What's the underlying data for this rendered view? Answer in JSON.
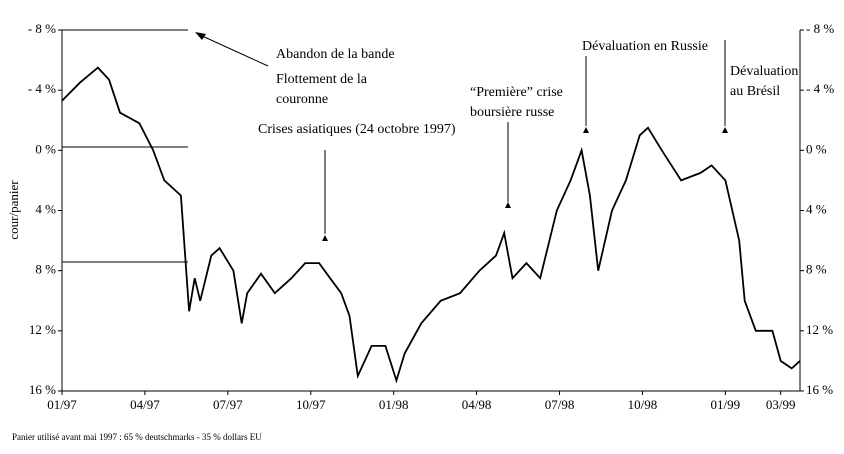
{
  "chart_data": {
    "type": "line",
    "y_label": "cour/panier",
    "footnote": "Panier utilisé avant mai 1997 : 65 % deutschmarks - 35 % dollars EU",
    "annotations": [
      "Abandon de la bande",
      "Flottement de la",
      "couronne",
      "Crises asiatiques (24 octobre 1997)",
      "“Première” crise",
      "boursière russe",
      "Dévaluation en Russie",
      "Dévaluation",
      "au Brésil"
    ],
    "color": "#000000",
    "y_inverted": true,
    "xlim": [
      0,
      26.7
    ],
    "xticks": [
      {
        "value": 0,
        "label": "01/97"
      },
      {
        "value": 3,
        "label": "04/97"
      },
      {
        "value": 6,
        "label": "07/97"
      },
      {
        "value": 9,
        "label": "10/97"
      },
      {
        "value": 12,
        "label": "01/98"
      },
      {
        "value": 15,
        "label": "04/98"
      },
      {
        "value": 18,
        "label": "07/98"
      },
      {
        "value": 21,
        "label": "10/98"
      },
      {
        "value": 24,
        "label": "01/99"
      },
      {
        "value": 26,
        "label": "03/99"
      }
    ],
    "ylim": [
      -8,
      16
    ],
    "yticks": [
      {
        "value": -8,
        "label": "- 8 %"
      },
      {
        "value": -4,
        "label": "- 4 %"
      },
      {
        "value": 0,
        "label": "0 %"
      },
      {
        "value": 4,
        "label": "4 %"
      },
      {
        "value": 8,
        "label": "8 %"
      },
      {
        "value": 12,
        "label": "12 %"
      },
      {
        "value": 16,
        "label": "16 %"
      }
    ],
    "x": [
      0,
      0.65,
      1.3,
      1.7,
      2.1,
      2.8,
      3.3,
      3.7,
      4.3,
      4.6,
      4.8,
      5.0,
      5.4,
      5.7,
      6.2,
      6.5,
      6.7,
      7.2,
      7.7,
      8.3,
      8.8,
      9.3,
      9.7,
      10.1,
      10.4,
      10.7,
      11.2,
      11.7,
      12.1,
      12.4,
      13.0,
      13.7,
      14.4,
      15.1,
      15.7,
      16.0,
      16.3,
      16.8,
      17.3,
      17.9,
      18.4,
      18.8,
      19.1,
      19.4,
      19.9,
      20.4,
      20.9,
      21.2,
      21.7,
      22.4,
      23.1,
      23.5,
      24.0,
      24.5,
      24.7,
      25.1,
      25.7,
      26.0,
      26.4,
      26.7
    ],
    "values": [
      -3.3,
      -4.5,
      -5.5,
      -4.7,
      -2.5,
      -1.8,
      0,
      2,
      3,
      10.7,
      8.5,
      10,
      7,
      6.5,
      8,
      11.5,
      9.5,
      8.2,
      9.5,
      8.5,
      7.5,
      7.5,
      8.5,
      9.5,
      11,
      15,
      13,
      13,
      15.3,
      13.5,
      11.5,
      10,
      9.5,
      8,
      7,
      5.5,
      8.5,
      7.5,
      8.5,
      4,
      2,
      0,
      3,
      8,
      4,
      2,
      -1,
      -1.5,
      0,
      2,
      1.5,
      1,
      2,
      6,
      10,
      12,
      12,
      14,
      14.5,
      14
    ]
  }
}
